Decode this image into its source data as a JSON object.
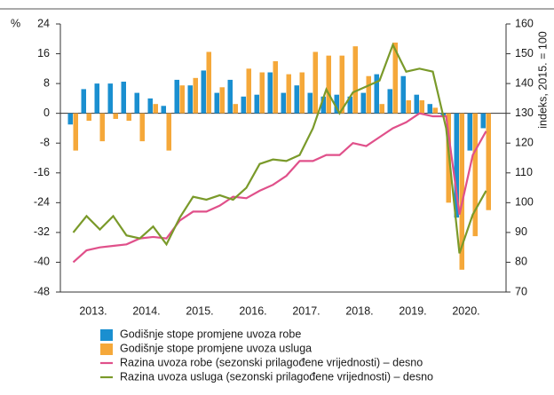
{
  "chart_data": {
    "type": "bar",
    "y_label": "%",
    "y2_label": "indeks, 2015. = 100",
    "categories": [
      "2013.",
      null,
      null,
      null,
      "2014.",
      null,
      null,
      null,
      "2015.",
      null,
      null,
      null,
      "2016.",
      null,
      null,
      null,
      "2017.",
      null,
      null,
      null,
      "2018.",
      null,
      null,
      null,
      "2019.",
      null,
      null,
      null,
      "2020.",
      null,
      null,
      null
    ],
    "ylim": [
      -48,
      24
    ],
    "yticks": [
      -48,
      -40,
      -32,
      -24,
      -16,
      -8,
      0,
      8,
      16,
      24
    ],
    "y2lim": [
      70,
      160
    ],
    "y2ticks": [
      70,
      80,
      90,
      100,
      110,
      120,
      130,
      140,
      150,
      160
    ],
    "series": [
      {
        "name": "Godišnje stope promjene uvoza robe",
        "type": "bar",
        "color": "#1a8fd0",
        "values": [
          -3,
          6.5,
          8,
          8,
          8.5,
          5.5,
          4,
          2,
          9,
          7.5,
          11.5,
          5.5,
          9,
          4.5,
          5,
          11,
          5.5,
          7.5,
          5.5,
          4.5,
          5,
          4.5,
          5.5,
          10.5,
          6.5,
          10,
          5,
          2.5,
          -1,
          -28,
          -10,
          -4
        ]
      },
      {
        "name": "Godišnje stope promjene uvoza usluga",
        "type": "bar",
        "color": "#f5a83a",
        "values": [
          -10,
          -2,
          -7.5,
          -1.5,
          -2,
          -7.5,
          2.5,
          -10,
          7.5,
          9.5,
          16.5,
          7,
          2.5,
          12,
          11,
          14,
          10.5,
          11,
          16.5,
          15.5,
          15.5,
          18,
          10,
          2.5,
          19,
          3.5,
          3.5,
          1.5,
          -24,
          -42,
          -33,
          -26
        ]
      },
      {
        "name": "Razina uvoza robe (sezonski prilagođene vrijednosti) – desno",
        "type": "line",
        "axis": "y2",
        "color": "#e0508a",
        "values": [
          80,
          84,
          85,
          85.5,
          86,
          88,
          88.5,
          88,
          94,
          97,
          97,
          99,
          102,
          101.5,
          104,
          106,
          109,
          114,
          114,
          116,
          116,
          120,
          119,
          122,
          125,
          127,
          130,
          129,
          129,
          96,
          116,
          124
        ]
      },
      {
        "name": "Razina uvoza usluga (sezonski prilagođene vrijednosti) – desno",
        "type": "line",
        "axis": "y2",
        "color": "#7a9a2a",
        "values": [
          90,
          95.5,
          91,
          95.5,
          89,
          88,
          92,
          86,
          95,
          102,
          101,
          102.5,
          101,
          105,
          113,
          114.5,
          114,
          116,
          125,
          138,
          130,
          137,
          139,
          141,
          153,
          144,
          145,
          144,
          125,
          83,
          96,
          104
        ]
      }
    ]
  }
}
